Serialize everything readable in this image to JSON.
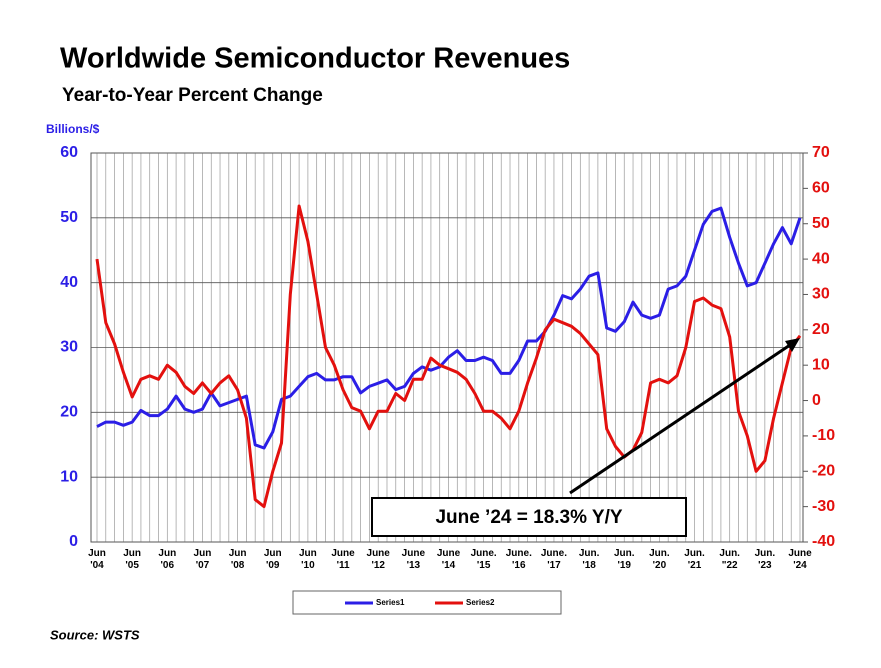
{
  "chart_data": {
    "type": "line",
    "title": "Worldwide Semiconductor Revenues",
    "subtitle": "Year-to-Year Percent Change",
    "y_axis_label": "Billions/$",
    "annotation": "June ’24 = 18.3% Y/Y",
    "source": "Source: WSTS",
    "categories": [
      "Jun\n'04",
      null,
      null,
      null,
      "Jun\n'05",
      null,
      null,
      null,
      "Jun\n'06",
      null,
      null,
      null,
      "Jun\n'07",
      null,
      null,
      null,
      "Jun\n'08",
      null,
      null,
      null,
      "Jun\n'09",
      null,
      null,
      null,
      "Jun\n'10",
      null,
      null,
      null,
      "June\n'11",
      null,
      null,
      null,
      "June\n'12",
      null,
      null,
      null,
      "June\n'13",
      null,
      null,
      null,
      "June\n'14",
      null,
      null,
      null,
      "June.\n'15",
      null,
      null,
      null,
      "June.\n'16",
      null,
      null,
      null,
      "June.\n'17",
      null,
      null,
      null,
      "Jun.\n'18",
      null,
      null,
      null,
      "Jun.\n'19",
      null,
      null,
      null,
      "Jun.\n'20",
      null,
      null,
      null,
      "Jun.\n'21",
      null,
      null,
      null,
      "Jun.\n\"22",
      null,
      null,
      null,
      "Jun.\n'23",
      null,
      null,
      null,
      "June\n'24"
    ],
    "series": [
      {
        "name": "Series1",
        "color": "#2b1ee6",
        "axis": "y",
        "values": [
          17.8,
          18.5,
          18.5,
          18,
          18.5,
          20.3,
          19.5,
          19.5,
          20.5,
          22.5,
          20.5,
          20,
          20.5,
          23,
          21,
          21.5,
          22,
          22.5,
          15,
          14.5,
          17,
          22,
          22.5,
          24,
          25.5,
          26,
          25,
          25,
          25.5,
          25.5,
          23,
          24,
          24.5,
          25,
          23.5,
          24,
          26,
          27,
          26.5,
          27,
          28.5,
          29.5,
          28,
          28,
          28.5,
          28,
          26,
          26,
          28,
          31,
          31,
          32.5,
          35,
          38,
          37.5,
          39,
          41,
          41.5,
          33,
          32.5,
          34,
          37,
          35,
          34.5,
          35,
          39,
          39.5,
          41,
          45,
          49,
          51,
          51.5,
          47,
          43,
          39.5,
          40,
          43,
          46,
          48.5,
          46,
          50
        ]
      },
      {
        "name": "Series2",
        "color": "#e3100e",
        "axis": "y2",
        "values": [
          40,
          22,
          16,
          8,
          1,
          6,
          7,
          6,
          10,
          8,
          4,
          2,
          5,
          2,
          5,
          7,
          3,
          -5,
          -28,
          -30,
          -20,
          -12,
          30,
          55,
          45,
          30,
          15,
          10,
          3,
          -2,
          -3,
          -8,
          -3,
          -3,
          2,
          0,
          6,
          6,
          12,
          10,
          9,
          8,
          6,
          2,
          -3,
          -3,
          -5,
          -8,
          -3,
          5,
          12,
          20,
          23,
          22,
          21,
          19,
          16,
          13,
          -8,
          -13,
          -16,
          -14,
          -9,
          5,
          6,
          5,
          7,
          15,
          28,
          29,
          27,
          26,
          18,
          -3,
          -10,
          -20,
          -17,
          -5,
          5,
          15,
          18.3
        ]
      }
    ],
    "ylim": [
      0,
      60
    ],
    "yticks": [
      0,
      10,
      20,
      30,
      40,
      50,
      60
    ],
    "y2lim": [
      -40,
      70
    ],
    "y2ticks": [
      -40,
      -30,
      -20,
      -10,
      0,
      10,
      20,
      30,
      40,
      50,
      60,
      70
    ],
    "grid": true,
    "legend": "bottom"
  }
}
